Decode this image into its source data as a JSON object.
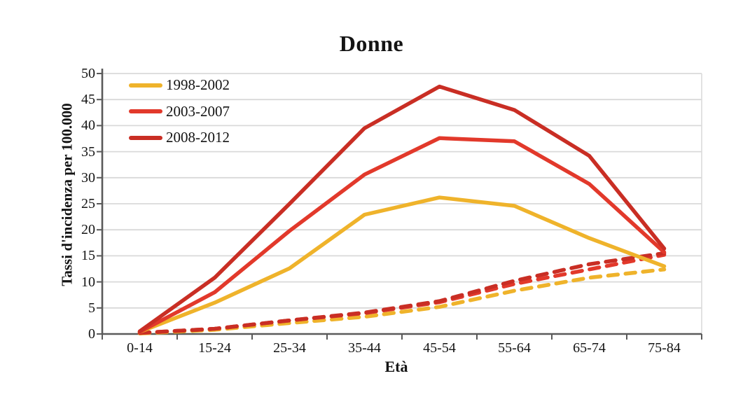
{
  "page": {
    "background": "#FFFFFF"
  },
  "chart_data": {
    "type": "line",
    "title": "Donne",
    "xlabel": "Età",
    "ylabel": "Tassi d'incidenza per 100.000",
    "categories": [
      "0-14",
      "15-24",
      "25-34",
      "35-44",
      "45-54",
      "55-64",
      "65-74",
      "75-84"
    ],
    "yticks": [
      0,
      5,
      10,
      15,
      20,
      25,
      30,
      35,
      40,
      45,
      50
    ],
    "ylim": [
      0,
      50
    ],
    "grid": "horizontal-gridlines-only",
    "legend_position": "inside-top-left",
    "colors": {
      "series_1998_2002": "#EFB32B",
      "series_2003_2007": "#E2392B",
      "series_2008_2012": "#C92E24",
      "gridline": "#D9D9D9",
      "axis": "#5A5A5A",
      "text": "#141414"
    },
    "legend": [
      {
        "label": "1998-2002",
        "color": "#EFB32B"
      },
      {
        "label": "2003-2007",
        "color": "#E2392B"
      },
      {
        "label": "2008-2012",
        "color": "#C92E24"
      }
    ],
    "series": [
      {
        "name": "1998-2002",
        "style": "dashed",
        "color": "#EFB32B",
        "values": [
          0.1,
          0.8,
          2.1,
          3.3,
          5.2,
          8.3,
          10.8,
          12.4
        ]
      },
      {
        "name": "2003-2007",
        "style": "dashed",
        "color": "#E2392B",
        "values": [
          0.2,
          1.0,
          2.6,
          4.0,
          6.1,
          9.6,
          12.4,
          15.2
        ]
      },
      {
        "name": "2008-2012",
        "style": "dashed",
        "color": "#C92E24",
        "values": [
          0.2,
          1.0,
          2.6,
          4.1,
          6.3,
          10.2,
          13.4,
          15.5
        ]
      },
      {
        "name": "1998-2002",
        "style": "solid",
        "color": "#EFB32B",
        "values": [
          0.4,
          6.0,
          12.6,
          22.9,
          26.2,
          24.6,
          18.4,
          13.0
        ]
      },
      {
        "name": "2003-2007",
        "style": "solid",
        "color": "#E2392B",
        "values": [
          0.4,
          8.0,
          19.8,
          30.6,
          37.6,
          37.0,
          28.8,
          15.7
        ]
      },
      {
        "name": "2008-2012",
        "style": "solid",
        "color": "#C92E24",
        "values": [
          0.5,
          10.8,
          25.0,
          39.5,
          47.5,
          43.0,
          34.2,
          16.4
        ]
      }
    ]
  }
}
